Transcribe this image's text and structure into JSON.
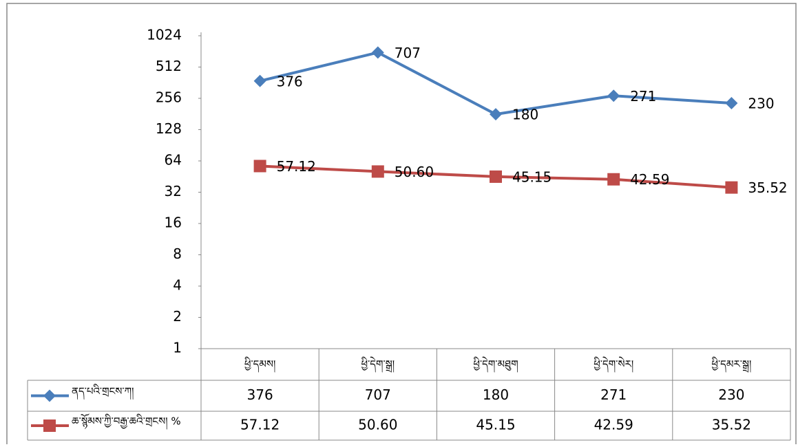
{
  "chart_data": {
    "type": "line",
    "categories": [
      "ཕྱི་དམས།",
      "ཕྱི་དེག་སྒྲ།",
      "ཕྱི་དེག་མཐུག",
      "ཕྱི་དེག་སེར།",
      "ཕྱི་དམར་སྒྲ།"
    ],
    "series": [
      {
        "name": "ནད་པའི་གྲངས་ཀ།",
        "color": "#4a7ebb",
        "marker": "diamond",
        "values": [
          376,
          707,
          180,
          271,
          230
        ]
      },
      {
        "name": "ཆ་སྙོམས་ཀྱི་བརྒྱ་ཆའི་གྲངས། %",
        "color": "#be4b48",
        "marker": "square",
        "values": [
          57.12,
          50.6,
          45.15,
          42.59,
          35.52
        ],
        "value_labels": [
          "57.12",
          "50.60",
          "45.15",
          "42.59",
          "35.52"
        ]
      }
    ],
    "ylim": [
      1,
      1024
    ],
    "yticks": [
      1,
      2,
      4,
      8,
      16,
      32,
      64,
      128,
      256,
      512,
      1024
    ],
    "log_base": 2,
    "grid": false,
    "data_table": true
  }
}
